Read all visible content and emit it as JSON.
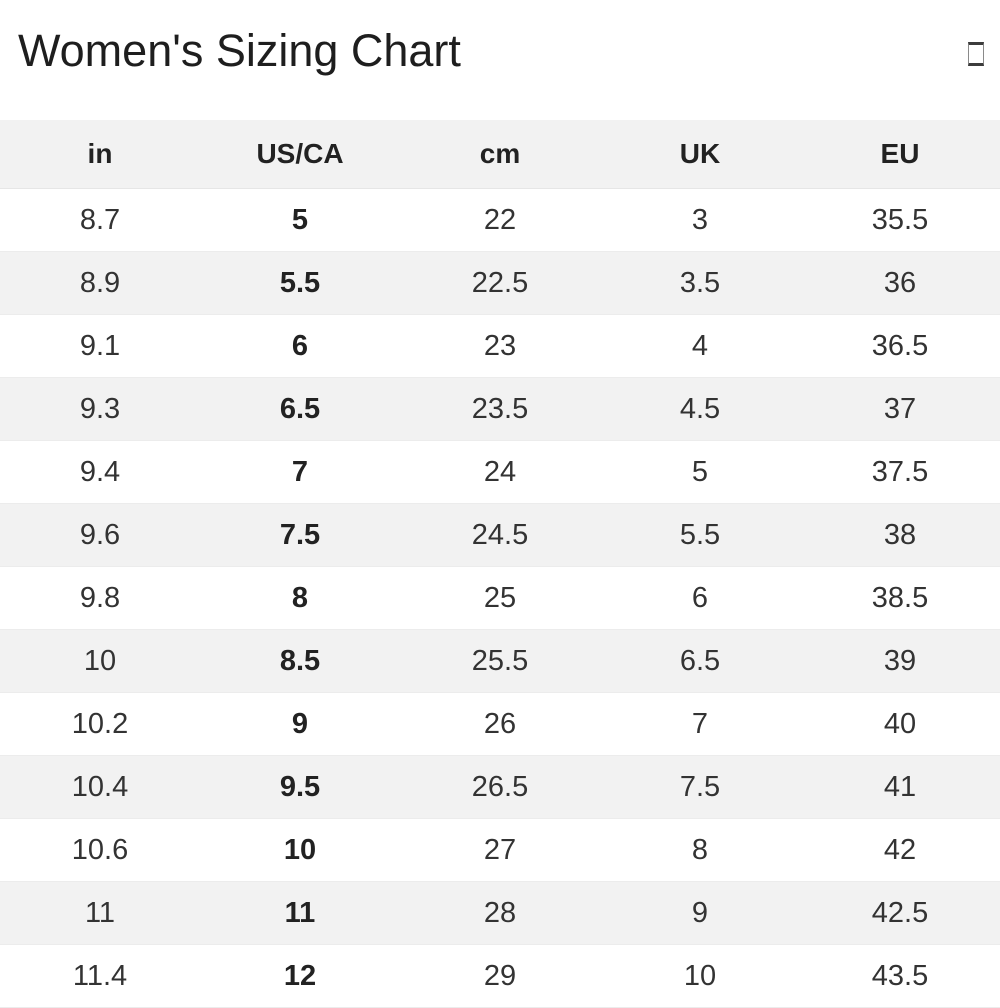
{
  "header": {
    "title": "Women's Sizing Chart",
    "corner_icon": "square-glyph-icon"
  },
  "table": {
    "columns": [
      "in",
      "US/CA",
      "cm",
      "UK",
      "EU"
    ],
    "bold_column_index": 1,
    "rows": [
      [
        "8.7",
        "5",
        "22",
        "3",
        "35.5"
      ],
      [
        "8.9",
        "5.5",
        "22.5",
        "3.5",
        "36"
      ],
      [
        "9.1",
        "6",
        "23",
        "4",
        "36.5"
      ],
      [
        "9.3",
        "6.5",
        "23.5",
        "4.5",
        "37"
      ],
      [
        "9.4",
        "7",
        "24",
        "5",
        "37.5"
      ],
      [
        "9.6",
        "7.5",
        "24.5",
        "5.5",
        "38"
      ],
      [
        "9.8",
        "8",
        "25",
        "6",
        "38.5"
      ],
      [
        "10",
        "8.5",
        "25.5",
        "6.5",
        "39"
      ],
      [
        "10.2",
        "9",
        "26",
        "7",
        "40"
      ],
      [
        "10.4",
        "9.5",
        "26.5",
        "7.5",
        "41"
      ],
      [
        "10.6",
        "10",
        "27",
        "8",
        "42"
      ],
      [
        "11",
        "11",
        "28",
        "9",
        "42.5"
      ],
      [
        "11.4",
        "12",
        "29",
        "10",
        "43.5"
      ]
    ]
  },
  "colors": {
    "header_background": "#f2f2f2",
    "row_stripe": "#f2f2f2",
    "row_border": "#ececec",
    "text": "#333333",
    "title_text": "#1e1e1e"
  }
}
